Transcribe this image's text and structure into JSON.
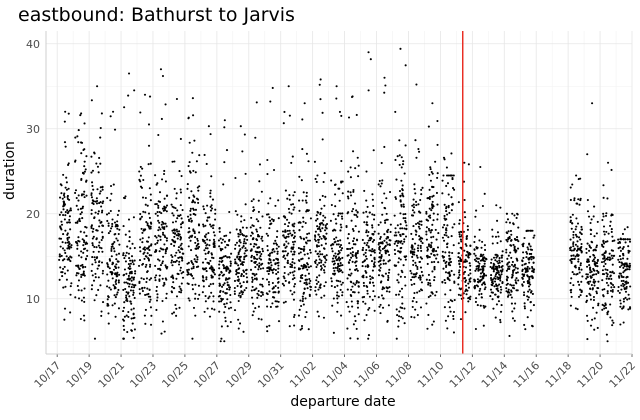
{
  "chart_data": {
    "type": "scatter",
    "title": "eastbound: Bathurst to Jarvis",
    "xlabel": "departure date",
    "ylabel": "duration",
    "x_ticks": [
      "10/17",
      "10/19",
      "10/21",
      "10/23",
      "10/25",
      "10/27",
      "10/29",
      "10/31",
      "11/02",
      "11/04",
      "11/06",
      "11/08",
      "11/10",
      "11/12",
      "11/14",
      "11/16",
      "11/18",
      "11/20",
      "11/22"
    ],
    "x_range_days": [
      -0.7,
      36.0
    ],
    "ylim": [
      3.5,
      41.5
    ],
    "y_ticks": [
      10,
      20,
      30,
      40
    ],
    "grid": true,
    "reference_line": {
      "x_day": 25.4,
      "color": "#e8241a"
    },
    "point_color": "#000000",
    "daily_summary": {
      "note": "x = days since 10/17; each day has points with median, spread (p10-p90) and max duration",
      "days": [
        0,
        1,
        2,
        3,
        4,
        5,
        6,
        7,
        8,
        9,
        10,
        11,
        12,
        13,
        14,
        15,
        16,
        17,
        18,
        19,
        20,
        21,
        22,
        23,
        24,
        25,
        26,
        27,
        28,
        29,
        30,
        31,
        32,
        33,
        34,
        35
      ],
      "median": [
        17,
        17.5,
        18,
        14,
        12,
        15,
        17,
        16,
        17,
        15,
        13,
        14,
        15,
        14,
        16,
        15,
        16,
        15,
        15,
        14,
        15,
        16,
        15,
        16,
        16,
        14,
        13,
        13,
        14,
        13,
        null,
        null,
        15,
        13,
        13,
        13
      ],
      "low": [
        11,
        11,
        12,
        9,
        9,
        10,
        10,
        10,
        11,
        10,
        8,
        10,
        10,
        10,
        10,
        10,
        10,
        10,
        10,
        9,
        10,
        10,
        10,
        10,
        10,
        10,
        9,
        9,
        9,
        9,
        null,
        null,
        11,
        9,
        8,
        9
      ],
      "high": [
        26,
        29,
        28,
        22,
        22,
        27,
        26,
        25,
        28,
        23,
        19,
        21,
        22,
        22,
        25,
        25,
        25,
        24,
        27,
        23,
        24,
        28,
        25,
        26,
        28,
        21,
        17,
        17,
        19,
        18,
        null,
        null,
        22,
        20,
        20,
        19
      ],
      "max": [
        32,
        31.8,
        35,
        32,
        36.5,
        34,
        37,
        33.5,
        33.6,
        30.3,
        31,
        30.3,
        33.1,
        34.8,
        35,
        33,
        35.8,
        35,
        33.8,
        39,
        36,
        39.4,
        35.2,
        33,
        24.5,
        26,
        25.5,
        21,
        20,
        18,
        null,
        null,
        24.5,
        33,
        26,
        17
      ]
    }
  }
}
